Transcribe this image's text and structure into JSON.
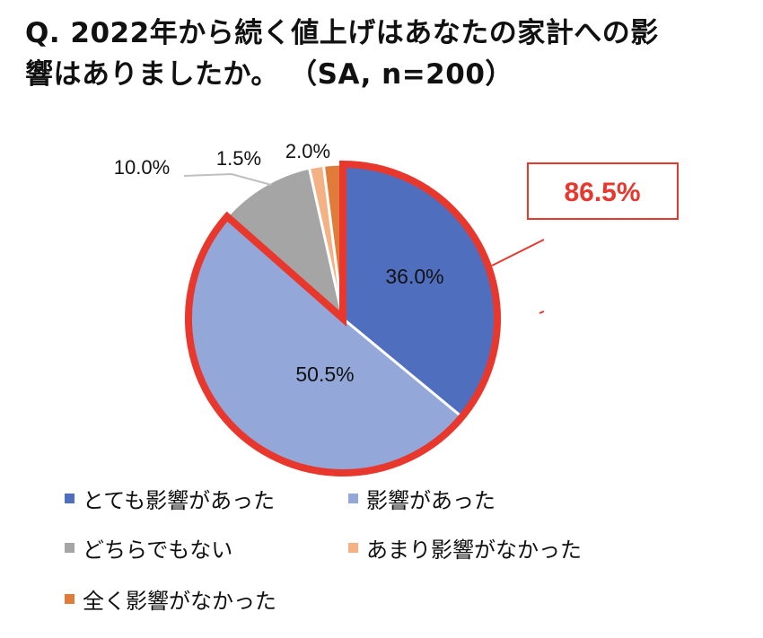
{
  "title": {
    "line1": "Q. 2022年から続く値上げはあなたの家計への影",
    "line2": "響はありましたか。 （SA, n=200）"
  },
  "chart_data": {
    "type": "pie",
    "title": "Q. 2022年から続く値上げはあなたの家計への影響はありましたか。 （SA, n=200）",
    "slices": [
      {
        "label": "とても影響があった",
        "value": 36.0,
        "data_label": "36.0%",
        "color": "#4F6FBE"
      },
      {
        "label": "影響があった",
        "value": 50.5,
        "data_label": "50.5%",
        "color": "#93A7D9"
      },
      {
        "label": "どちらでもない",
        "value": 10.0,
        "data_label": "10.0%",
        "color": "#A5A5A5"
      },
      {
        "label": "あまり影響がなかった",
        "value": 1.5,
        "data_label": "1.5%",
        "color": "#F4B183"
      },
      {
        "label": "全く影響がなかった",
        "value": 2.0,
        "data_label": "2.0%",
        "color": "#E07B39"
      }
    ],
    "highlight": {
      "label": "86.5%",
      "slices": [
        "とても影響があった",
        "影響があった"
      ],
      "color": "#E8382E"
    },
    "legend_position": "bottom"
  }
}
